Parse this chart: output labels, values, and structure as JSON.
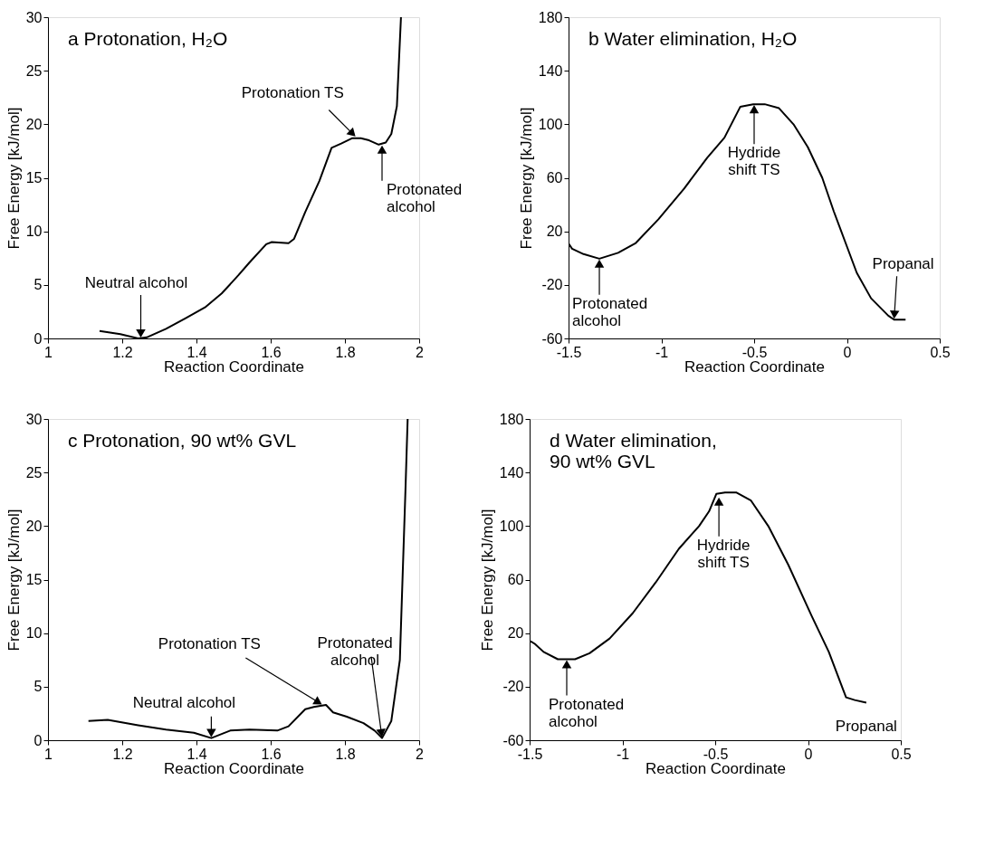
{
  "chart_data": [
    {
      "type": "line",
      "title": "a Protonation, H₂O",
      "xlabel": "Reaction Coordinate",
      "ylabel": "Free Energy [kJ/mol]",
      "xlim": [
        1,
        2
      ],
      "ylim": [
        0,
        30
      ],
      "xticks": [
        1,
        1.2,
        1.4,
        1.6,
        1.8,
        2
      ],
      "yticks": [
        0,
        5,
        10,
        15,
        20,
        25,
        30
      ],
      "grid": false,
      "series": [
        {
          "color": "#000000",
          "x": [
            1.139,
            1.195,
            1.243,
            1.266,
            1.318,
            1.371,
            1.423,
            1.468,
            1.513,
            1.543,
            1.588,
            1.603,
            1.648,
            1.663,
            1.693,
            1.731,
            1.764,
            1.79,
            1.82,
            1.843,
            1.865,
            1.891,
            1.91,
            1.925,
            1.94,
            1.951
          ],
          "values": [
            0.7,
            0.4,
            0,
            0.1,
            0.9,
            1.9,
            2.9,
            4.2,
            5.9,
            7.1,
            8.8,
            9.0,
            8.9,
            9.3,
            11.8,
            14.7,
            17.8,
            18.2,
            18.7,
            18.7,
            18.5,
            18.1,
            18.3,
            19.1,
            21.7,
            30
          ]
        }
      ],
      "annotations": [
        {
          "text": "Neutral alcohol",
          "x": 1.25,
          "y": 0
        },
        {
          "text": "Protonation TS",
          "x": 1.83,
          "y": 18.8
        },
        {
          "text": "Protonated\nalcohol",
          "x": 1.9,
          "y": 18.1
        }
      ]
    },
    {
      "type": "line",
      "title": "b Water elimination, H₂O",
      "xlabel": "Reaction Coordinate",
      "ylabel": "Free Energy [kJ/mol]",
      "xlim": [
        -1.5,
        0.5
      ],
      "ylim": [
        -60,
        180
      ],
      "xticks": [
        -1.5,
        -1,
        -0.5,
        0,
        0.5
      ],
      "yticks": [
        -60,
        -20,
        20,
        60,
        100,
        140,
        180
      ],
      "grid": false,
      "series": [
        {
          "color": "#000000",
          "x": [
            -1.5,
            -1.481,
            -1.419,
            -1.334,
            -1.233,
            -1.14,
            -1.016,
            -0.877,
            -0.753,
            -0.66,
            -0.575,
            -0.505,
            -0.443,
            -0.366,
            -0.288,
            -0.211,
            -0.133,
            -0.071,
            -0.009,
            0.053,
            0.13,
            0.223,
            0.254,
            0.316
          ],
          "values": [
            11,
            7,
            3,
            -0.4,
            4,
            11,
            29,
            52,
            75,
            90,
            113,
            115,
            115,
            112,
            100,
            83,
            60,
            35,
            12,
            -11,
            -30,
            -43,
            -46,
            -46
          ]
        }
      ],
      "annotations": [
        {
          "text": "Protonated\nalcohol",
          "x": -1.334,
          "y": -0.4
        },
        {
          "text": "Hydride\nshift TS",
          "x": -0.5,
          "y": 115
        },
        {
          "text": "Propanal",
          "x": 0.254,
          "y": -46
        }
      ]
    },
    {
      "type": "line",
      "title": "c Protonation, 90 wt% GVL",
      "xlabel": "Reaction Coordinate",
      "ylabel": "Free Energy [kJ/mol]",
      "xlim": [
        1,
        2
      ],
      "ylim": [
        0,
        30
      ],
      "xticks": [
        1,
        1.2,
        1.4,
        1.6,
        1.8,
        2
      ],
      "yticks": [
        0,
        5,
        10,
        15,
        20,
        25,
        30
      ],
      "grid": false,
      "series": [
        {
          "color": "#000000",
          "x": [
            1.109,
            1.161,
            1.243,
            1.318,
            1.393,
            1.44,
            1.491,
            1.543,
            1.618,
            1.648,
            1.693,
            1.716,
            1.749,
            1.768,
            1.805,
            1.85,
            1.88,
            1.9,
            1.925,
            1.948,
            1.963,
            1.969
          ],
          "values": [
            1.8,
            1.9,
            1.4,
            1.0,
            0.7,
            0.2,
            0.9,
            1.0,
            0.9,
            1.3,
            2.9,
            3.1,
            3.3,
            2.6,
            2.2,
            1.6,
            0.9,
            0.2,
            1.8,
            7.5,
            23.3,
            30
          ]
        }
      ],
      "annotations": [
        {
          "text": "Neutral alcohol",
          "x": 1.44,
          "y": 0.2
        },
        {
          "text": "Protonation TS",
          "x": 1.74,
          "y": 3.3
        },
        {
          "text": "Protonated\nalcohol",
          "x": 1.9,
          "y": 0.2
        }
      ]
    },
    {
      "type": "line",
      "title": "d Water elimination,\n90 wt% GVL",
      "xlabel": "Reaction Coordinate",
      "ylabel": "Free Energy [kJ/mol]",
      "xlim": [
        -1.5,
        0.5
      ],
      "ylim": [
        -60,
        180
      ],
      "xticks": [
        -1.5,
        -1,
        -0.5,
        0,
        0.5
      ],
      "yticks": [
        -60,
        -20,
        20,
        60,
        100,
        140,
        180
      ],
      "grid": false,
      "series": [
        {
          "color": "#000000",
          "x": [
            -1.495,
            -1.472,
            -1.425,
            -1.348,
            -1.255,
            -1.177,
            -1.069,
            -0.944,
            -0.82,
            -0.696,
            -0.587,
            -0.533,
            -0.494,
            -0.447,
            -0.385,
            -0.307,
            -0.214,
            -0.106,
            0.019,
            0.112,
            0.205,
            0.252,
            0.314
          ],
          "values": [
            14,
            12,
            6,
            0.5,
            0.5,
            5,
            16,
            35,
            58,
            83,
            100,
            111,
            124,
            125,
            125,
            119,
            100,
            71,
            33,
            6,
            -28,
            -30,
            -32
          ]
        }
      ],
      "annotations": [
        {
          "text": "Protonated\nalcohol",
          "x": -1.3,
          "y": 0.5
        },
        {
          "text": "Hydride\nshift TS",
          "x": -0.48,
          "y": 122
        },
        {
          "text": "Propanal",
          "x": 0.314,
          "y": -32
        }
      ]
    }
  ]
}
